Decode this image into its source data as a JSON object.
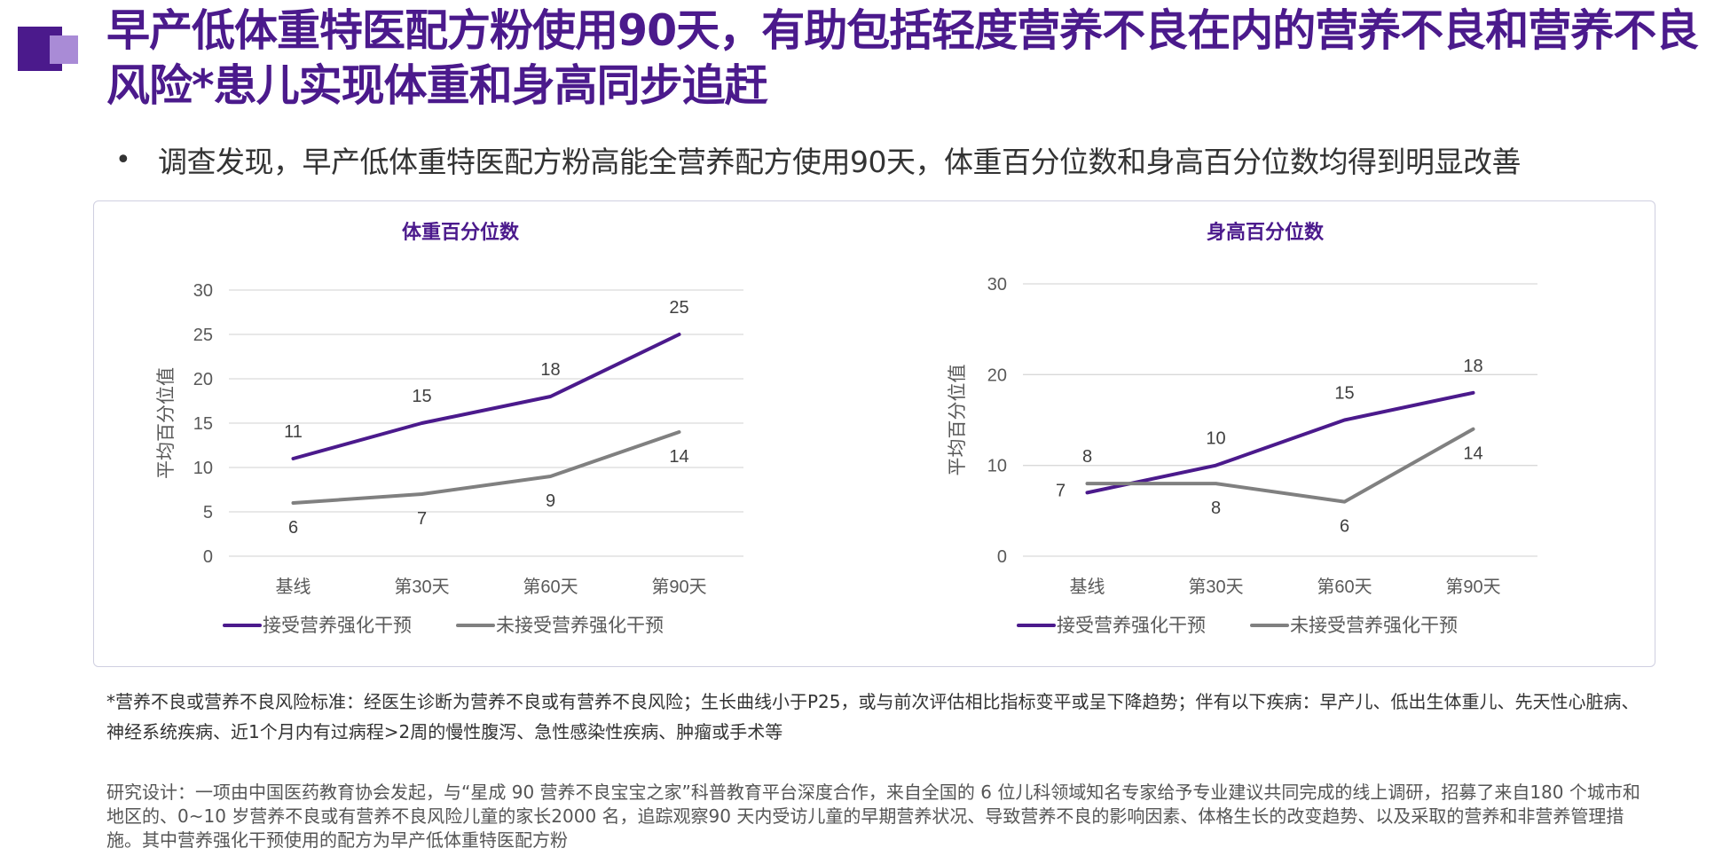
{
  "header": {
    "title": "早产低体重特医配方粉使用90天，有助包括轻度营养不良在内的营养不良和营养不良风险*患儿实现体重和身高同步追赶"
  },
  "bullet": {
    "symbol": "•",
    "text": "调查发现，早产低体重特医配方粉高能全营养配方使用90天，体重百分位数和身高百分位数均得到明显改善"
  },
  "footnote": "*营养不良或营养不良风险标准：经医生诊断为营养不良或有营养不良风险；生长曲线小于P25，或与前次评估相比指标变平或呈下降趋势；伴有以下疾病：早产儿、低出生体重儿、先天性心脏病、神经系统疾病、近1个月内有过病程>2周的慢性腹泻、急性感染性疾病、肿瘤或手术等",
  "study_design": "研究设计：一项由中国医药教育协会发起，与“星成 90 营养不良宝宝之家”科普教育平台深度合作，来自全国的 6 位儿科领域知名专家给予专业建议共同完成的线上调研，招募了来自180 个城市和地区的、0~10 岁营养不良或有营养不良风险儿童的家长2000 名，追踪观察90 天内受访儿童的早期营养状况、导致营养不良的影响因素、体格生长的改变趋势、以及采取的营养和非营养管理措施。其中营养强化干预使用的配方为早产低体重特医配方粉",
  "colors": {
    "brand": "#4b1a8c",
    "series_intervention": "#4b1a8c",
    "series_control": "#808080",
    "grid": "#d9d9d9"
  },
  "chart_data": [
    {
      "type": "line",
      "title": "体重百分位数",
      "xlabel": "",
      "ylabel": "平均百分位值",
      "categories": [
        "基线",
        "第30天",
        "第60天",
        "第90天"
      ],
      "ylim": [
        0,
        30
      ],
      "yticks": [
        0,
        5,
        10,
        15,
        20,
        25,
        30
      ],
      "grid": true,
      "legend": "bottom",
      "series": [
        {
          "name": "接受营养强化干预",
          "values": [
            11,
            15,
            18,
            25
          ],
          "color": "#4b1a8c"
        },
        {
          "name": "未接受营养强化干预",
          "values": [
            6,
            7,
            9,
            14
          ],
          "color": "#808080"
        }
      ]
    },
    {
      "type": "line",
      "title": "身高百分位数",
      "xlabel": "",
      "ylabel": "平均百分位值",
      "categories": [
        "基线",
        "第30天",
        "第60天",
        "第90天"
      ],
      "ylim": [
        0,
        30
      ],
      "yticks": [
        0,
        10,
        20,
        30
      ],
      "grid": true,
      "legend": "bottom",
      "series": [
        {
          "name": "接受营养强化干预",
          "values": [
            7,
            10,
            15,
            18
          ],
          "color": "#4b1a8c"
        },
        {
          "name": "未接受营养强化干预",
          "values": [
            8,
            8,
            6,
            14
          ],
          "color": "#808080"
        }
      ]
    }
  ]
}
